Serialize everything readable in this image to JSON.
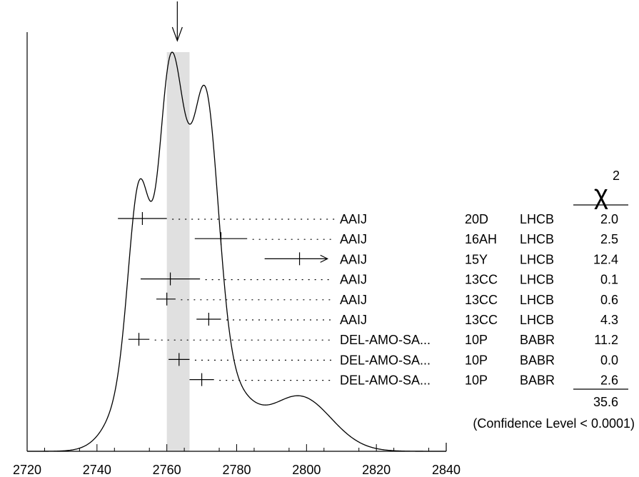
{
  "chart_data": {
    "type": "ideogram",
    "title": "",
    "xlabel": "",
    "ylabel": "",
    "xlim": [
      2720,
      2840
    ],
    "x_ticks": [
      "2720",
      "2740",
      "2760",
      "2780",
      "2800",
      "2820",
      "2840"
    ],
    "weighted_average_marker": 2763,
    "error_band": [
      2760,
      2766.5
    ],
    "chi2_header": "χ",
    "chi2_superscript": "2",
    "measurements": [
      {
        "author": "AAIJ",
        "doc": "20D",
        "tecn": "LHCB",
        "chi2": "2.0",
        "value": 2753.0,
        "err_lo": 7.0,
        "err_hi": 7.0,
        "offscale": false
      },
      {
        "author": "AAIJ",
        "doc": "16AH",
        "tecn": "LHCB",
        "chi2": "2.5",
        "value": 2775.5,
        "err_lo": 7.5,
        "err_hi": 7.5,
        "offscale": false
      },
      {
        "author": "AAIJ",
        "doc": "15Y",
        "tecn": "LHCB",
        "chi2": "12.4",
        "value": 2798.0,
        "err_lo": 10.0,
        "err_hi": 8.0,
        "offscale": true
      },
      {
        "author": "AAIJ",
        "doc": "13CC",
        "tecn": "LHCB",
        "chi2": "0.1",
        "value": 2761.0,
        "err_lo": 8.5,
        "err_hi": 8.5,
        "offscale": false
      },
      {
        "author": "AAIJ",
        "doc": "13CC",
        "tecn": "LHCB",
        "chi2": "0.6",
        "value": 2760.0,
        "err_lo": 3.0,
        "err_hi": 2.5,
        "offscale": false
      },
      {
        "author": "AAIJ",
        "doc": "13CC",
        "tecn": "LHCB",
        "chi2": "4.3",
        "value": 2772.0,
        "err_lo": 3.5,
        "err_hi": 3.5,
        "offscale": false
      },
      {
        "author": "DEL-AMO-SA...",
        "doc": "10P",
        "tecn": "BABR",
        "chi2": "11.2",
        "value": 2752.0,
        "err_lo": 3.0,
        "err_hi": 3.0,
        "offscale": false
      },
      {
        "author": "DEL-AMO-SA...",
        "doc": "10P",
        "tecn": "BABR",
        "chi2": "0.0",
        "value": 2763.5,
        "err_lo": 3.0,
        "err_hi": 3.0,
        "offscale": false
      },
      {
        "author": "DEL-AMO-SA...",
        "doc": "10P",
        "tecn": "BABR",
        "chi2": "2.6",
        "value": 2770.0,
        "err_lo": 3.5,
        "err_hi": 3.5,
        "offscale": false
      }
    ],
    "chi2_total": "35.6",
    "confidence_level": "(Confidence Level < 0.0001)"
  }
}
